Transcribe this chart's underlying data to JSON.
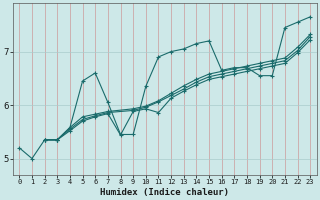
{
  "xlabel": "Humidex (Indice chaleur)",
  "bg_color": "#cde8e8",
  "grid_color": "#b0cccc",
  "line_color": "#1a6b6b",
  "xlim": [
    -0.5,
    23.5
  ],
  "ylim": [
    4.7,
    7.9
  ],
  "xticks": [
    0,
    1,
    2,
    3,
    4,
    5,
    6,
    7,
    8,
    9,
    10,
    11,
    12,
    13,
    14,
    15,
    16,
    17,
    18,
    19,
    20,
    21,
    22,
    23
  ],
  "yticks": [
    5,
    6,
    7
  ],
  "series": [
    {
      "x": [
        0,
        1,
        2,
        3,
        4,
        5,
        6,
        7,
        8,
        9,
        10,
        11,
        12,
        13,
        14,
        15,
        16,
        17,
        18,
        19,
        20,
        21,
        22,
        23
      ],
      "y": [
        5.2,
        5.0,
        5.35,
        5.35,
        5.58,
        6.45,
        6.6,
        6.05,
        5.45,
        5.45,
        6.35,
        6.9,
        7.0,
        7.05,
        7.15,
        7.2,
        6.65,
        6.7,
        6.7,
        6.55,
        6.55,
        7.45,
        7.55,
        7.65
      ]
    },
    {
      "x": [
        2,
        3,
        4,
        5,
        6,
        7,
        9,
        10,
        11,
        12,
        13,
        14,
        15,
        16,
        17,
        18,
        19,
        20,
        21,
        22,
        23
      ],
      "y": [
        5.35,
        5.35,
        5.58,
        5.78,
        5.83,
        5.88,
        5.93,
        5.98,
        6.08,
        6.22,
        6.36,
        6.48,
        6.58,
        6.63,
        6.68,
        6.73,
        6.78,
        6.83,
        6.88,
        7.08,
        7.32
      ]
    },
    {
      "x": [
        2,
        3,
        4,
        5,
        6,
        7,
        9,
        10,
        11,
        12,
        13,
        14,
        15,
        16,
        17,
        18,
        19,
        20,
        21,
        22,
        23
      ],
      "y": [
        5.35,
        5.35,
        5.55,
        5.73,
        5.8,
        5.86,
        5.9,
        5.96,
        6.06,
        6.18,
        6.3,
        6.43,
        6.53,
        6.58,
        6.63,
        6.68,
        6.73,
        6.78,
        6.83,
        7.02,
        7.28
      ]
    },
    {
      "x": [
        2,
        3,
        4,
        5,
        6,
        7,
        8,
        9,
        10,
        11,
        12,
        13,
        14,
        15,
        16,
        17,
        18,
        19,
        20,
        21,
        22,
        23
      ],
      "y": [
        5.35,
        5.35,
        5.52,
        5.7,
        5.78,
        5.84,
        5.44,
        5.88,
        5.93,
        5.86,
        6.13,
        6.26,
        6.38,
        6.48,
        6.53,
        6.58,
        6.63,
        6.68,
        6.73,
        6.78,
        6.98,
        7.22
      ]
    }
  ]
}
